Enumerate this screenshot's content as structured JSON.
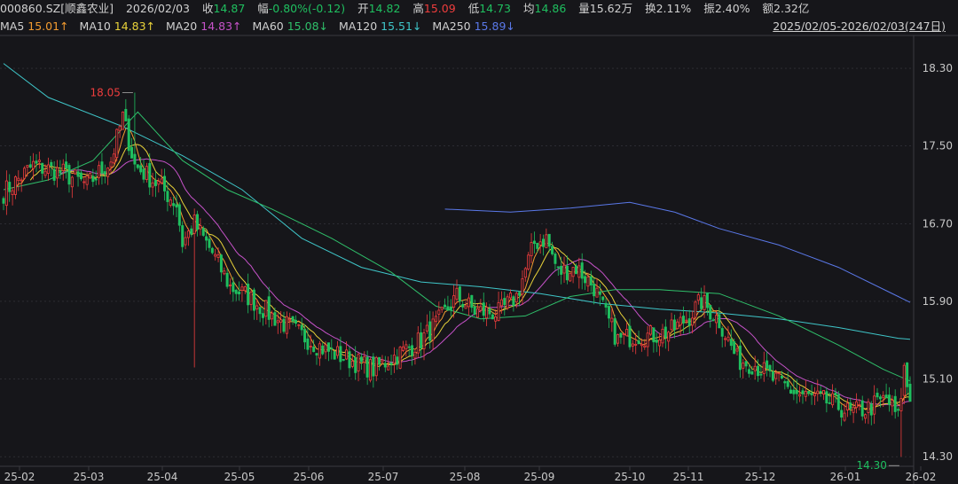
{
  "header": {
    "symbol": "000860.SZ[顺鑫农业]",
    "date": "2026/02/03",
    "close_label": "收",
    "close": "14.87",
    "change_label": "幅",
    "change": "-0.80%(-0.12)",
    "open_label": "开",
    "open": "14.82",
    "high_label": "高",
    "high": "15.09",
    "low_label": "低",
    "low": "14.73",
    "avg_label": "均",
    "avg": "14.86",
    "volume_label": "量",
    "volume": "15.62万",
    "turnover_label": "换",
    "turnover": "2.11%",
    "amplitude_label": "振",
    "amplitude": "2.40%",
    "amount_label": "额",
    "amount": "2.32亿"
  },
  "ma_bar": [
    {
      "label": "MA5",
      "value": "15.01↑",
      "color": "#f29b30"
    },
    {
      "label": "MA10",
      "value": "14.83↑",
      "color": "#e8d23a"
    },
    {
      "label": "MA20",
      "value": "14.83↑",
      "color": "#c552c8"
    },
    {
      "label": "MA60",
      "value": "15.08↓",
      "color": "#2fbf6a"
    },
    {
      "label": "MA120",
      "value": "15.51↓",
      "color": "#3fc6c9"
    },
    {
      "label": "MA250",
      "value": "15.89↓",
      "color": "#5a78e8"
    }
  ],
  "range_label": "2025/02/05-2026/02/03(247日)",
  "colors": {
    "up": "#ef3d3d",
    "down": "#1fbf5f",
    "grid": "#3a3a40",
    "text": "#c8c8c8"
  },
  "chart_data": {
    "type": "candlestick",
    "ylim": [
      14.2,
      18.6
    ],
    "y_ticks": [
      14.3,
      15.1,
      15.9,
      16.7,
      17.5,
      18.3
    ],
    "y_tick_labels": [
      "14.30",
      "15.10",
      "15.90",
      "16.70",
      "17.50",
      "18.30"
    ],
    "x_ticks": [
      "25-02",
      "25-03",
      "25-04",
      "25-05",
      "25-06",
      "25-07",
      "25-08",
      "25-09",
      "25-10",
      "25-11",
      "25-12",
      "26-01",
      "26-02"
    ],
    "annotations": [
      {
        "label": "18.05",
        "value": 18.05,
        "kind": "max"
      },
      {
        "label": "14.30",
        "value": 14.3,
        "kind": "min"
      }
    ],
    "anchors": [
      [
        0,
        17.02
      ],
      [
        10,
        17.3
      ],
      [
        20,
        17.22
      ],
      [
        28,
        17.1
      ],
      [
        36,
        17.35
      ],
      [
        40,
        17.8
      ],
      [
        44,
        17.3
      ],
      [
        52,
        17.1
      ],
      [
        58,
        16.9
      ],
      [
        60,
        16.5
      ],
      [
        64,
        16.7
      ],
      [
        70,
        16.4
      ],
      [
        76,
        16.05
      ],
      [
        82,
        15.95
      ],
      [
        90,
        15.75
      ],
      [
        100,
        15.55
      ],
      [
        108,
        15.4
      ],
      [
        116,
        15.3
      ],
      [
        124,
        15.2
      ],
      [
        132,
        15.35
      ],
      [
        140,
        15.5
      ],
      [
        146,
        15.7
      ],
      [
        152,
        15.95
      ],
      [
        158,
        15.8
      ],
      [
        166,
        15.78
      ],
      [
        172,
        15.95
      ],
      [
        178,
        16.5
      ],
      [
        182,
        16.55
      ],
      [
        186,
        16.2
      ],
      [
        192,
        16.25
      ],
      [
        198,
        16.05
      ],
      [
        202,
        15.75
      ],
      [
        206,
        15.5
      ],
      [
        212,
        15.55
      ],
      [
        218,
        15.55
      ],
      [
        224,
        15.6
      ],
      [
        230,
        15.75
      ],
      [
        234,
        15.9
      ],
      [
        240,
        15.7
      ],
      [
        246,
        15.3
      ],
      [
        252,
        15.25
      ],
      [
        258,
        15.1
      ],
      [
        266,
        14.95
      ],
      [
        272,
        14.9
      ],
      [
        278,
        14.85
      ],
      [
        284,
        14.75
      ],
      [
        290,
        14.8
      ],
      [
        296,
        14.9
      ],
      [
        300,
        14.7
      ],
      [
        302,
        15.2
      ],
      [
        304,
        14.87
      ]
    ],
    "ma_lines": [
      {
        "name": "MA120",
        "color": "#3fc6c9",
        "points": [
          [
            0,
            18.35
          ],
          [
            15,
            18.0
          ],
          [
            40,
            17.7
          ],
          [
            60,
            17.4
          ],
          [
            80,
            17.05
          ],
          [
            100,
            16.55
          ],
          [
            120,
            16.25
          ],
          [
            140,
            16.1
          ],
          [
            160,
            16.05
          ],
          [
            180,
            15.98
          ],
          [
            200,
            15.88
          ],
          [
            220,
            15.82
          ],
          [
            240,
            15.78
          ],
          [
            260,
            15.72
          ],
          [
            280,
            15.63
          ],
          [
            300,
            15.52
          ],
          [
            304,
            15.51
          ]
        ]
      },
      {
        "name": "MA250",
        "color": "#5a78e8",
        "points": [
          [
            148,
            16.85
          ],
          [
            170,
            16.82
          ],
          [
            190,
            16.86
          ],
          [
            210,
            16.92
          ],
          [
            225,
            16.82
          ],
          [
            240,
            16.65
          ],
          [
            260,
            16.48
          ],
          [
            280,
            16.25
          ],
          [
            300,
            15.95
          ],
          [
            304,
            15.89
          ]
        ]
      },
      {
        "name": "MA60",
        "color": "#2fbf6a",
        "points": [
          [
            0,
            17.05
          ],
          [
            15,
            17.15
          ],
          [
            30,
            17.35
          ],
          [
            45,
            17.85
          ],
          [
            60,
            17.35
          ],
          [
            75,
            17.05
          ],
          [
            90,
            16.85
          ],
          [
            110,
            16.55
          ],
          [
            130,
            16.2
          ],
          [
            145,
            15.85
          ],
          [
            160,
            15.72
          ],
          [
            175,
            15.75
          ],
          [
            190,
            15.95
          ],
          [
            205,
            16.02
          ],
          [
            220,
            16.02
          ],
          [
            240,
            15.98
          ],
          [
            260,
            15.75
          ],
          [
            280,
            15.45
          ],
          [
            295,
            15.2
          ],
          [
            304,
            15.08
          ]
        ]
      }
    ]
  }
}
